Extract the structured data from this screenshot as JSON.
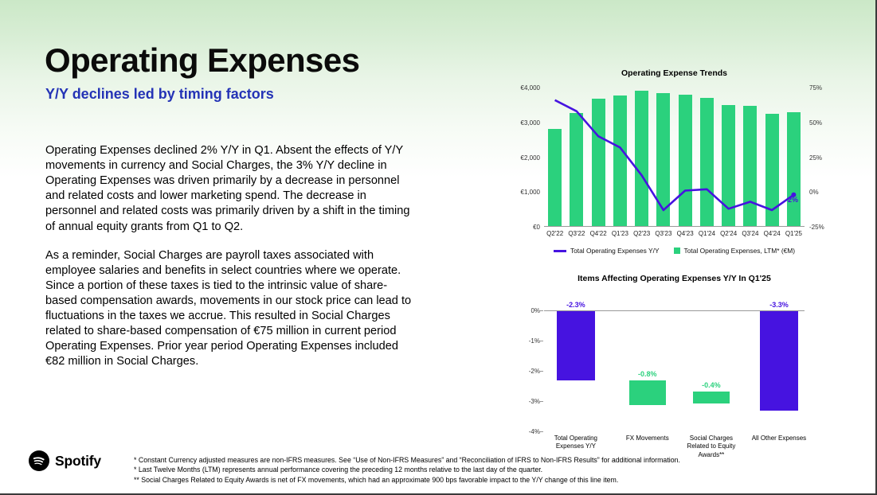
{
  "slide": {
    "title": "Operating Expenses",
    "subtitle": "Y/Y declines led by timing factors",
    "paragraphs": [
      "Operating Expenses declined 2% Y/Y in Q1. Absent the effects of Y/Y movements in currency and Social Charges, the 3% Y/Y decline in Operating Expenses was driven primarily by a decrease in personnel and related costs and lower marketing spend. The decrease in personnel and related costs was primarily driven by a shift in the timing of annual equity grants from Q1 to Q2.",
      "As a reminder, Social Charges are payroll taxes associated with employee salaries and benefits in select countries where we operate. Since a portion of these taxes is tied to the intrinsic value of share-based compensation awards, movements in our stock price can lead to fluctuations in the taxes we accrue. This resulted in Social Charges related to share-based compensation of €75 million in current period Operating Expenses. Prior year period Operating Expenses included €82 million in Social Charges."
    ]
  },
  "colors": {
    "green": "#2bd17d",
    "purple": "#4613e0",
    "subtitle_blue": "#2433b6"
  },
  "chart_data": [
    {
      "type": "combo-bar-line",
      "title": "Operating Expense Trends",
      "categories": [
        "Q2'22",
        "Q3'22",
        "Q4'22",
        "Q1'23",
        "Q2'23",
        "Q3'23",
        "Q4'23",
        "Q1'24",
        "Q2'24",
        "Q3'24",
        "Q4'24",
        "Q1'25"
      ],
      "series": [
        {
          "name": "Total Operating Expenses, LTM* (€M)",
          "type": "bar",
          "axis": "left",
          "color": "#2bd17d",
          "values": [
            2800,
            3250,
            3650,
            3750,
            3890,
            3820,
            3770,
            3680,
            3480,
            3450,
            3230,
            3270
          ]
        },
        {
          "name": "Total Operating Expenses Y/Y",
          "type": "line",
          "axis": "right",
          "color": "#4613e0",
          "values": [
            66,
            58,
            40,
            32,
            12,
            -13,
            1,
            2,
            -12,
            -7,
            -13,
            -2
          ]
        }
      ],
      "left_axis": {
        "min": 0,
        "max": 4000,
        "ticks": [
          "€4,000",
          "€3,000",
          "€2,000",
          "€1,000",
          "€0"
        ]
      },
      "right_axis": {
        "min": -25,
        "max": 75,
        "ticks": [
          "75%",
          "50%",
          "25%",
          "0%",
          "-25%"
        ]
      },
      "end_label": "-2%",
      "legend_position": "bottom",
      "grid": false
    },
    {
      "type": "bar",
      "title": "Items Affecting Operating Expenses Y/Y In Q1'25",
      "categories": [
        "Total Operating\nExpenses Y/Y",
        "FX Movements",
        "Social Charges\nRelated to Equity\nAwards**",
        "All Other Expenses"
      ],
      "bars": [
        {
          "label": "-2.3%",
          "value": -2.3,
          "from": 0,
          "to": -2.3,
          "color": "#4613e0"
        },
        {
          "label": "-0.8%",
          "value": -0.8,
          "from": -2.3,
          "to": -3.1,
          "color": "#2bd17d"
        },
        {
          "label": "-0.4%",
          "value": -0.4,
          "from": -2.65,
          "to": -3.05,
          "color": "#2bd17d"
        },
        {
          "label": "-3.3%",
          "value": -3.3,
          "from": 0,
          "to": -3.3,
          "color": "#4613e0"
        }
      ],
      "y_axis": {
        "min": -4,
        "max": 0,
        "ticks": [
          "0%",
          "-1%",
          "-2%",
          "-3%",
          "-4%"
        ]
      },
      "grid": false
    }
  ],
  "footer": {
    "brand": "Spotify",
    "footnotes": [
      "* Constant Currency adjusted measures are non-IFRS measures. See “Use of Non-IFRS Measures” and “Reconciliation of IFRS to Non-IFRS Results” for additional information.",
      "* Last Twelve Months (LTM) represents annual performance covering the preceding 12 months relative to the last day of the quarter.",
      "** Social Charges Related to Equity Awards is net of FX movements, which had an approximate 900 bps favorable impact to the Y/Y change of this line item."
    ]
  }
}
